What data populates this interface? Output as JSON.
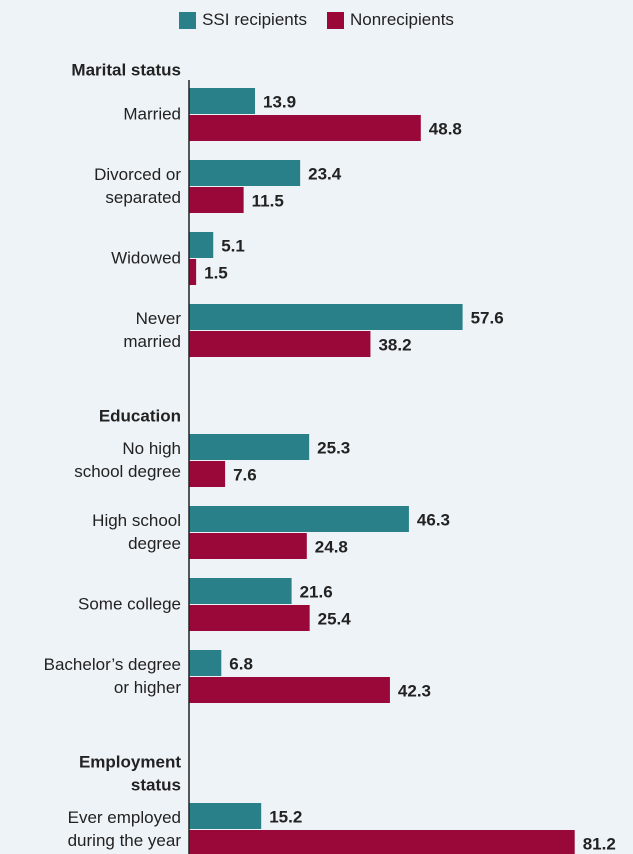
{
  "colors": {
    "ssi": "#2a8088",
    "non": "#990838",
    "axis": "#222222",
    "background": "#eef3f7"
  },
  "chart_data": {
    "type": "bar",
    "orientation": "horizontal",
    "series": [
      {
        "name": "SSI recipients",
        "color": "#2a8088"
      },
      {
        "name": "Nonrecipients",
        "color": "#990838"
      }
    ],
    "groups": [
      {
        "heading": [
          "Marital status"
        ],
        "categories": [
          {
            "label": [
              "Married"
            ],
            "values": [
              13.9,
              48.8
            ]
          },
          {
            "label": [
              "Divorced or",
              "separated"
            ],
            "values": [
              23.4,
              11.5
            ]
          },
          {
            "label": [
              "Widowed"
            ],
            "values": [
              5.1,
              1.5
            ]
          },
          {
            "label": [
              "Never",
              "married"
            ],
            "values": [
              57.6,
              38.2
            ]
          }
        ]
      },
      {
        "heading": [
          "Education"
        ],
        "categories": [
          {
            "label": [
              "No high",
              "school degree"
            ],
            "values": [
              25.3,
              7.6
            ]
          },
          {
            "label": [
              "High school",
              "degree"
            ],
            "values": [
              46.3,
              24.8
            ]
          },
          {
            "label": [
              "Some college"
            ],
            "values": [
              21.6,
              25.4
            ]
          },
          {
            "label": [
              "Bachelor’s degree",
              "or higher"
            ],
            "values": [
              6.8,
              42.3
            ]
          }
        ]
      },
      {
        "heading": [
          "Employment",
          "status"
        ],
        "categories": [
          {
            "label": [
              "Ever employed",
              "during the year"
            ],
            "values": [
              15.2,
              81.2
            ]
          }
        ]
      }
    ],
    "legend_position": "top-center",
    "grid": false,
    "xlim": [
      0,
      85
    ]
  }
}
